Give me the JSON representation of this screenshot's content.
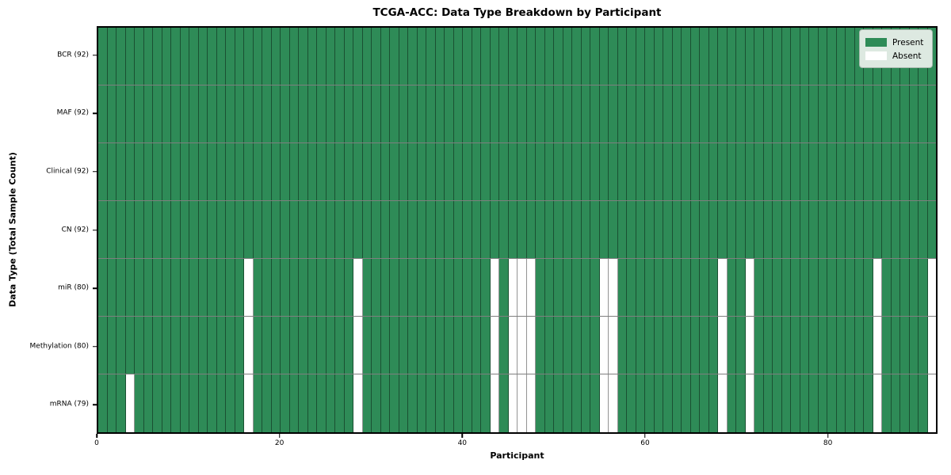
{
  "figure": {
    "title": "TCGA-ACC: Data Type Breakdown by Participant",
    "xlabel": "Participant",
    "ylabel": "Data Type (Total Sample Count)"
  },
  "legend": {
    "items": [
      {
        "name": "present",
        "label": "Present",
        "color": "#2e8b57"
      },
      {
        "name": "absent",
        "label": "Absent",
        "color": "#ffffff"
      }
    ]
  },
  "chart_data": {
    "type": "heatmap",
    "title": "TCGA-ACC: Data Type Breakdown by Participant",
    "xlabel": "Participant",
    "ylabel": "Data Type (Total Sample Count)",
    "legend_position": "upper right",
    "colors": {
      "present": "#2e8b57",
      "absent": "#ffffff"
    },
    "n_participants": 92,
    "xlim": [
      0,
      92
    ],
    "x_ticks": [
      0,
      20,
      40,
      60,
      80
    ],
    "rows": [
      {
        "data_type": "BCR",
        "label": "BCR (92)",
        "total": 92,
        "absent_participants": []
      },
      {
        "data_type": "MAF",
        "label": "MAF (92)",
        "total": 92,
        "absent_participants": []
      },
      {
        "data_type": "Clinical",
        "label": "Clinical (92)",
        "total": 92,
        "absent_participants": []
      },
      {
        "data_type": "CN",
        "label": "CN (92)",
        "total": 92,
        "absent_participants": []
      },
      {
        "data_type": "miR",
        "label": "miR (80)",
        "total": 80,
        "absent_participants": [
          16,
          28,
          43,
          45,
          46,
          47,
          55,
          56,
          68,
          71,
          85,
          91
        ]
      },
      {
        "data_type": "Methylation",
        "label": "Methylation (80)",
        "total": 80,
        "absent_participants": [
          16,
          28,
          43,
          45,
          46,
          47,
          55,
          56,
          68,
          71,
          85,
          91
        ]
      },
      {
        "data_type": "mRNA",
        "label": "mRNA (79)",
        "total": 79,
        "absent_participants": [
          3,
          16,
          28,
          43,
          45,
          46,
          47,
          55,
          56,
          68,
          71,
          85,
          91
        ]
      }
    ]
  }
}
